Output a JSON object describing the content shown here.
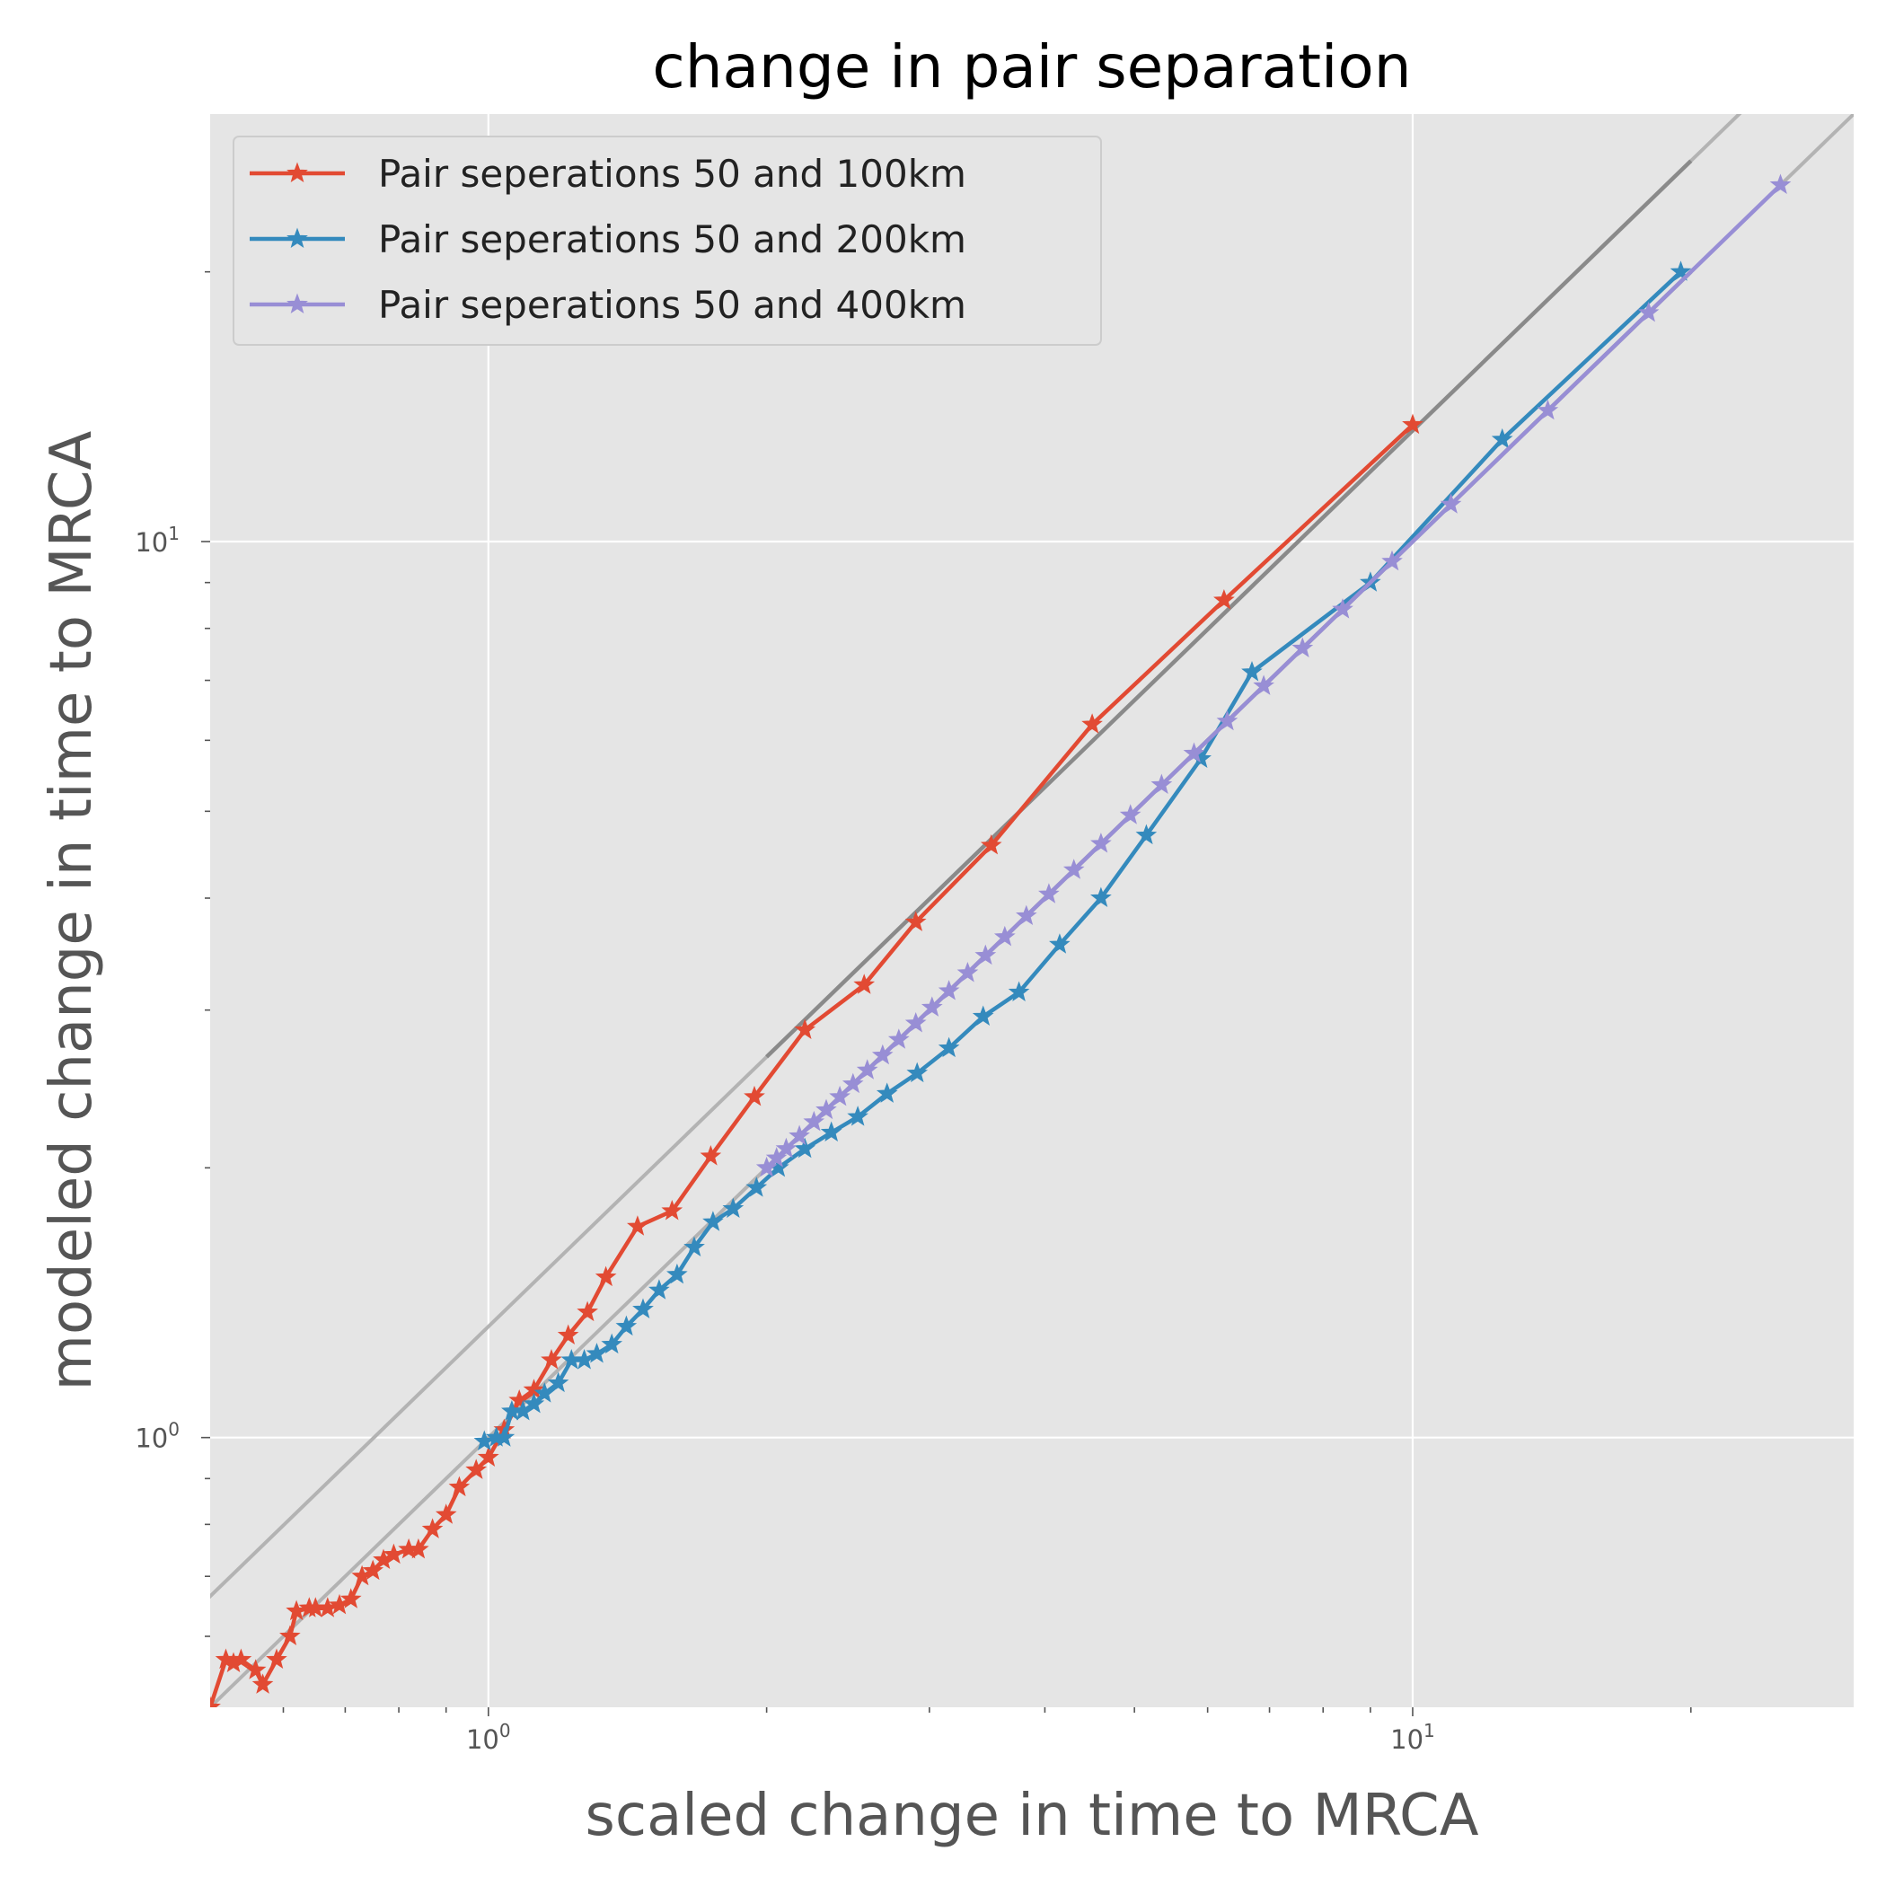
{
  "chart_data": {
    "type": "line",
    "title": "change in pair separation",
    "xlabel": "scaled change in time to MRCA",
    "ylabel": "modeled change in time to MRCA",
    "xscale": "log",
    "yscale": "log",
    "xlim": [
      0.5,
      30
    ],
    "ylim": [
      0.5,
      30
    ],
    "grid": true,
    "legend_position": "top-left",
    "x_major_ticks": [
      {
        "value": 1,
        "base": "10",
        "exp": "0"
      },
      {
        "value": 10,
        "base": "10",
        "exp": "1"
      }
    ],
    "y_major_ticks": [
      {
        "value": 1,
        "base": "10",
        "exp": "0"
      },
      {
        "value": 10,
        "base": "10",
        "exp": "1"
      }
    ],
    "reference_lines": [
      {
        "slope_factor": 1.0,
        "color": "#b3b3b3",
        "dark_range": [
          2.0,
          20.0
        ]
      },
      {
        "slope_factor": 1.33,
        "color": "#b3b3b3",
        "dark_range": [
          2.0,
          20.0
        ]
      }
    ],
    "series": [
      {
        "name": "Pair seperations 50 and 100km",
        "color": "#E24A33",
        "x": [
          0.5,
          0.52,
          0.53,
          0.54,
          0.56,
          0.57,
          0.59,
          0.61,
          0.62,
          0.64,
          0.65,
          0.67,
          0.69,
          0.71,
          0.73,
          0.75,
          0.77,
          0.79,
          0.82,
          0.84,
          0.87,
          0.9,
          0.93,
          0.97,
          1.0,
          1.04,
          1.08,
          1.12,
          1.17,
          1.22,
          1.28,
          1.34,
          1.45,
          1.58,
          1.74,
          1.94,
          2.2,
          2.55,
          2.9,
          3.5,
          4.5,
          6.25,
          10.0
        ],
        "y": [
          0.5,
          0.565,
          0.56,
          0.565,
          0.55,
          0.53,
          0.565,
          0.6,
          0.64,
          0.645,
          0.645,
          0.645,
          0.65,
          0.66,
          0.7,
          0.71,
          0.73,
          0.74,
          0.75,
          0.75,
          0.79,
          0.82,
          0.88,
          0.92,
          0.95,
          1.02,
          1.1,
          1.13,
          1.22,
          1.3,
          1.38,
          1.51,
          1.72,
          1.79,
          2.06,
          2.4,
          2.85,
          3.2,
          3.76,
          4.58,
          6.25,
          8.6,
          13.5
        ]
      },
      {
        "name": "Pair seperations 50 and 200km",
        "color": "#348ABD",
        "x": [
          0.99,
          1.02,
          1.04,
          1.06,
          1.09,
          1.12,
          1.15,
          1.19,
          1.23,
          1.27,
          1.31,
          1.36,
          1.41,
          1.47,
          1.53,
          1.6,
          1.67,
          1.75,
          1.84,
          1.95,
          2.06,
          2.2,
          2.35,
          2.51,
          2.7,
          2.91,
          3.15,
          3.43,
          3.75,
          4.15,
          4.6,
          5.15,
          5.9,
          6.7,
          9.0,
          12.5,
          19.5
        ],
        "y": [
          0.99,
          1.0,
          1.0,
          1.07,
          1.07,
          1.09,
          1.12,
          1.15,
          1.22,
          1.22,
          1.24,
          1.27,
          1.33,
          1.39,
          1.46,
          1.52,
          1.63,
          1.74,
          1.8,
          1.9,
          2.0,
          2.1,
          2.19,
          2.28,
          2.42,
          2.55,
          2.72,
          2.95,
          3.14,
          3.55,
          4.0,
          4.7,
          5.72,
          7.15,
          9.0,
          13.0,
          20.0
        ]
      },
      {
        "name": "Pair seperations 50 and 400km",
        "color": "#988ED5",
        "x": [
          2.0,
          2.05,
          2.1,
          2.17,
          2.25,
          2.32,
          2.4,
          2.48,
          2.57,
          2.67,
          2.78,
          2.9,
          3.02,
          3.15,
          3.3,
          3.45,
          3.62,
          3.82,
          4.04,
          4.3,
          4.6,
          4.95,
          5.35,
          5.8,
          6.3,
          6.9,
          7.6,
          8.4,
          9.5,
          11.0,
          14.0,
          18.0,
          25.0
        ],
        "y": [
          2.0,
          2.05,
          2.1,
          2.17,
          2.25,
          2.32,
          2.4,
          2.48,
          2.57,
          2.67,
          2.78,
          2.9,
          3.02,
          3.15,
          3.3,
          3.45,
          3.62,
          3.82,
          4.04,
          4.3,
          4.6,
          4.95,
          5.35,
          5.8,
          6.3,
          6.9,
          7.6,
          8.4,
          9.5,
          11.0,
          14.0,
          18.0,
          25.0
        ]
      }
    ]
  }
}
